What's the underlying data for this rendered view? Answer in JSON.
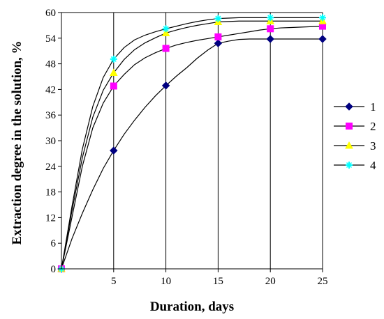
{
  "chart_data": {
    "type": "line",
    "title": "",
    "xlabel": "Duration, days",
    "ylabel": "Extraction degree in the solution, %",
    "xlim": [
      0,
      25
    ],
    "ylim": [
      0,
      60
    ],
    "xticks": [
      5,
      10,
      15,
      20,
      25
    ],
    "yticks": [
      0,
      6,
      12,
      18,
      24,
      30,
      36,
      42,
      48,
      54,
      60
    ],
    "grid": "vertical",
    "legend": "right",
    "series": [
      {
        "name": "1",
        "color": "#000080",
        "marker": "diamond",
        "x": [
          0,
          5,
          10,
          15,
          20,
          25
        ],
        "y": [
          0,
          27.7,
          42.9,
          52.8,
          53.8,
          53.8
        ],
        "curve_x": [
          0,
          1,
          2,
          3,
          4,
          5,
          6,
          7,
          8,
          9,
          10,
          11,
          12,
          13,
          14,
          15,
          16,
          17,
          18,
          19,
          20,
          21,
          22,
          23,
          24,
          25
        ],
        "curve_y": [
          0,
          7,
          13,
          18.5,
          23.5,
          27.7,
          31.5,
          34.8,
          37.8,
          40.5,
          42.9,
          45.1,
          47.1,
          49.3,
          51.2,
          52.8,
          53.3,
          53.7,
          53.8,
          53.8,
          53.8,
          53.8,
          53.8,
          53.8,
          53.8,
          53.8
        ]
      },
      {
        "name": "2",
        "color": "#ff00ff",
        "marker": "square",
        "x": [
          0,
          5,
          10,
          15,
          20,
          25
        ],
        "y": [
          0,
          42.8,
          51.6,
          54.3,
          56.2,
          56.8
        ],
        "curve_x": [
          0,
          1,
          2,
          3,
          4,
          5,
          6,
          7,
          8,
          9,
          10,
          11,
          12,
          13,
          14,
          15,
          16,
          17,
          18,
          19,
          20,
          21,
          22,
          23,
          24,
          25
        ],
        "curve_y": [
          0,
          12,
          24,
          33,
          38.8,
          42.8,
          45.5,
          47.8,
          49.4,
          50.6,
          51.6,
          52.4,
          53,
          53.5,
          53.9,
          54.3,
          54.7,
          55.1,
          55.5,
          55.9,
          56.2,
          56.4,
          56.5,
          56.6,
          56.7,
          56.8
        ]
      },
      {
        "name": "3",
        "color": "#ffff00",
        "marker": "triangle",
        "x": [
          0,
          5,
          10,
          15,
          20,
          25
        ],
        "y": [
          0,
          45.9,
          55.2,
          57.8,
          58,
          58
        ],
        "curve_x": [
          0,
          1,
          2,
          3,
          4,
          5,
          6,
          7,
          8,
          9,
          10,
          11,
          12,
          13,
          14,
          15,
          16,
          17,
          18,
          19,
          20,
          21,
          22,
          23,
          24,
          25
        ],
        "curve_y": [
          0,
          13.5,
          26,
          35.5,
          41.8,
          45.9,
          49,
          51.3,
          52.9,
          54.1,
          55.2,
          55.9,
          56.5,
          57,
          57.4,
          57.8,
          57.9,
          58,
          58,
          58,
          58,
          58,
          58,
          58,
          58,
          58
        ]
      },
      {
        "name": "4",
        "color": "#00ffff",
        "marker": "star",
        "x": [
          0,
          5,
          10,
          15,
          20,
          25
        ],
        "y": [
          0,
          49.1,
          56.2,
          58.6,
          58.8,
          58.8
        ],
        "curve_x": [
          0,
          1,
          2,
          3,
          4,
          5,
          6,
          7,
          8,
          9,
          10,
          11,
          12,
          13,
          14,
          15,
          16,
          17,
          18,
          19,
          20,
          21,
          22,
          23,
          24,
          25
        ],
        "curve_y": [
          0,
          14.5,
          28,
          38,
          44.8,
          49.1,
          51.8,
          53.6,
          54.7,
          55.5,
          56.2,
          56.8,
          57.4,
          57.9,
          58.3,
          58.6,
          58.7,
          58.8,
          58.8,
          58.8,
          58.8,
          58.8,
          58.8,
          58.8,
          58.8,
          58.8
        ]
      }
    ]
  }
}
